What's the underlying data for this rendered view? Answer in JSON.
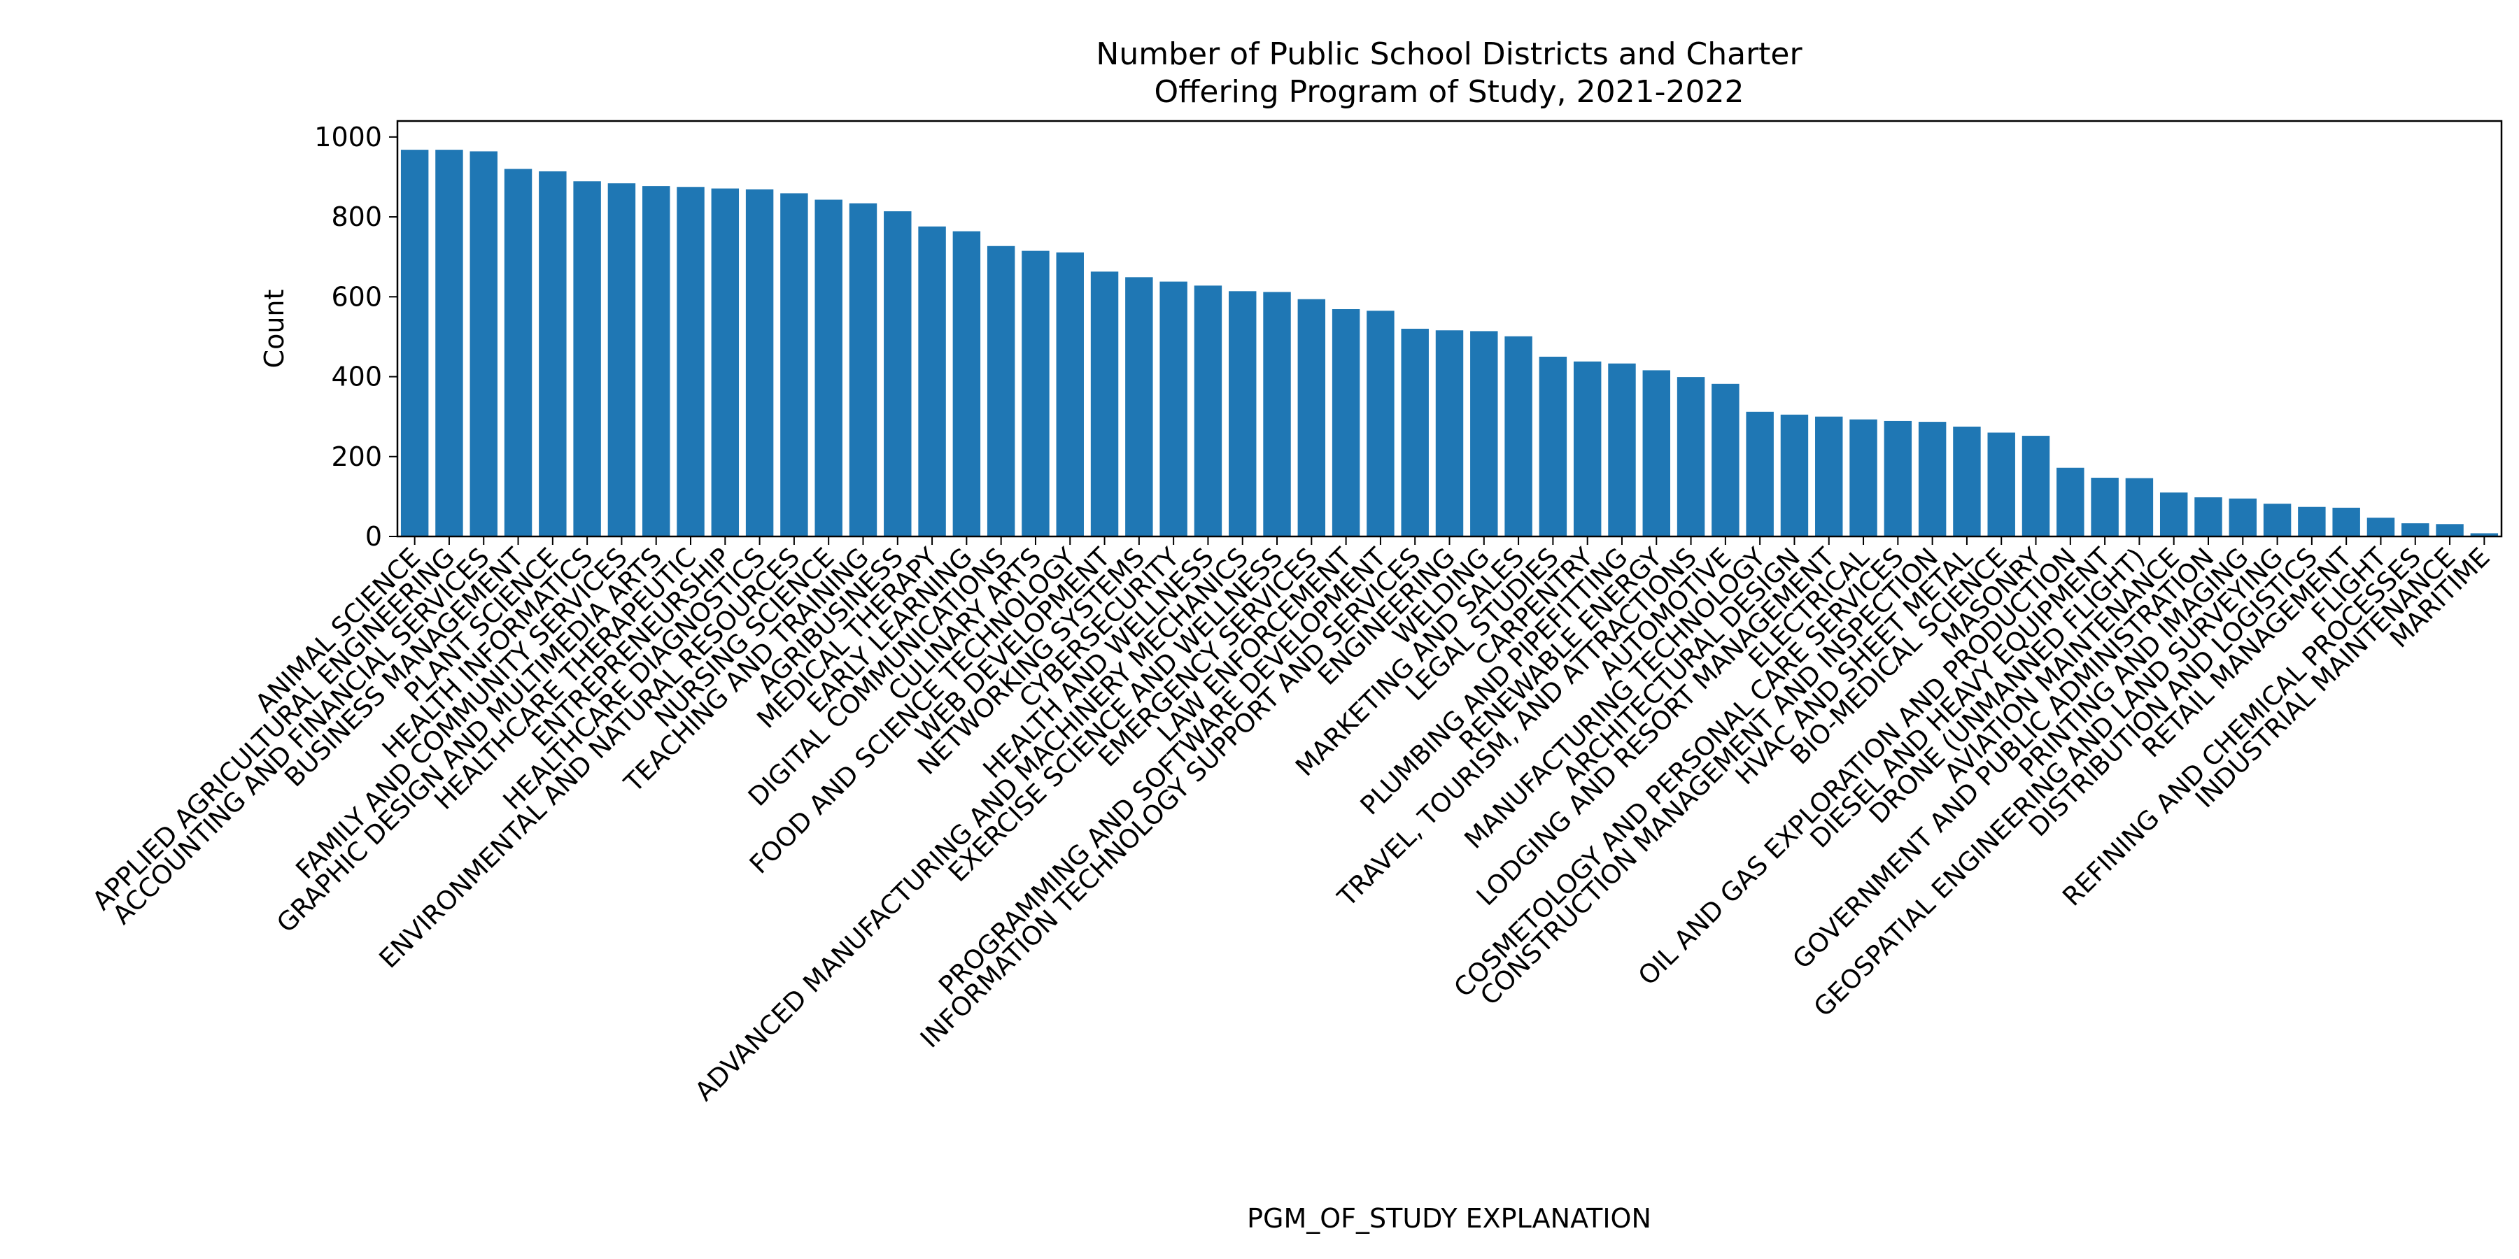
{
  "chart_data": {
    "type": "bar",
    "title": "Number of Public School Districts and Charter\nOffering Program of Study, 2021-2022",
    "xlabel": "PGM_OF_STUDY EXPLANATION",
    "ylabel": "Count",
    "ylim": [
      0,
      1040
    ],
    "yticks": [
      0,
      200,
      400,
      600,
      800,
      1000
    ],
    "grid": false,
    "bar_color": "#1f77b4",
    "categories": [
      "ANIMAL SCIENCE",
      "APPLIED AGRICULTURAL ENGINEERING",
      "ACCOUNTING AND FINANCIAL SERVICES",
      "BUSINESS MANAGEMENT",
      "PLANT SCIENCE",
      "HEALTH INFORMATICS",
      "FAMILY AND COMMUNITY SERVICES",
      "GRAPHIC DESIGN AND MULTIMEDIA ARTS",
      "HEALTHCARE THERAPEUTIC",
      "ENTREPRENEURSHIP",
      "HEALTHCARE DIAGNOSTICS",
      "ENVIRONMENTAL AND NATURAL RESOURCES",
      "NURSING SCIENCE",
      "TEACHING AND TRAINING",
      "AGRIBUSINESS",
      "MEDICAL THERAPY",
      "EARLY LEARNING",
      "DIGITAL COMMUNICATIONS",
      "CULINARY ARTS",
      "FOOD AND SCIENCE TECHNOLOGY",
      "WEB DEVELOPMENT",
      "NETWORKING SYSTEMS",
      "CYBERSECURITY",
      "HEALTH AND WELLNESS",
      "ADVANCED MANUFACTURING AND MACHINERY MECHANICS",
      "EXERCISE SCIENCE AND WELLNESS",
      "EMERGENCY SERVICES",
      "LAW ENFORCEMENT",
      "PROGRAMMING AND SOFTWARE DEVELOPMENT",
      "INFORMATION TECHNOLOGY SUPPORT AND SERVICES",
      "ENGINEERING",
      "WELDING",
      "MARKETING AND SALES",
      "LEGAL STUDIES",
      "CARPENTRY",
      "PLUMBING AND PIPEFITTING",
      "RENEWABLE ENERGY",
      "TRAVEL, TOURISM, AND ATTRACTIONS",
      "AUTOMOTIVE",
      "MANUFACTURING TECHNOLOGY",
      "ARCHITECTURAL DESIGN",
      "LODGING AND RESORT MANAGEMENT",
      "ELECTRICAL",
      "COSMETOLOGY AND PERSONAL CARE SERVICES",
      "CONSTRUCTION MANAGEMENT AND INSPECTION",
      "HVAC AND SHEET METAL",
      "BIO-MEDICAL SCIENCE",
      "MASONRY",
      "OIL AND GAS EXPLORATION AND PRODUCTION",
      "DIESEL AND HEAVY EQUIPMENT",
      "DRONE (UNMANNED FLIGHT)",
      "AVIATION MAINTENANCE",
      "GOVERNMENT AND PUBLIC ADMINISTRATION",
      "PRINTING AND IMAGING",
      "GEOSPATIAL ENGINEERING AND LAND SURVEYING",
      "DISTRIBUTION AND LOGISTICS",
      "RETAIL MANAGEMENT",
      "FLIGHT",
      "REFINING AND CHEMICAL PROCESSES",
      "INDUSTRIAL MAINTENANCE",
      "MARITIME"
    ],
    "values": [
      968,
      968,
      964,
      920,
      914,
      889,
      884,
      877,
      875,
      871,
      869,
      859,
      843,
      834,
      814,
      776,
      764,
      727,
      715,
      711,
      663,
      649,
      638,
      628,
      614,
      612,
      594,
      569,
      565,
      520,
      516,
      514,
      501,
      450,
      438,
      433,
      416,
      399,
      382,
      312,
      305,
      300,
      293,
      289,
      287,
      275,
      260,
      252,
      172,
      147,
      146,
      110,
      98,
      95,
      82,
      74,
      72,
      47,
      33,
      31,
      8
    ]
  }
}
